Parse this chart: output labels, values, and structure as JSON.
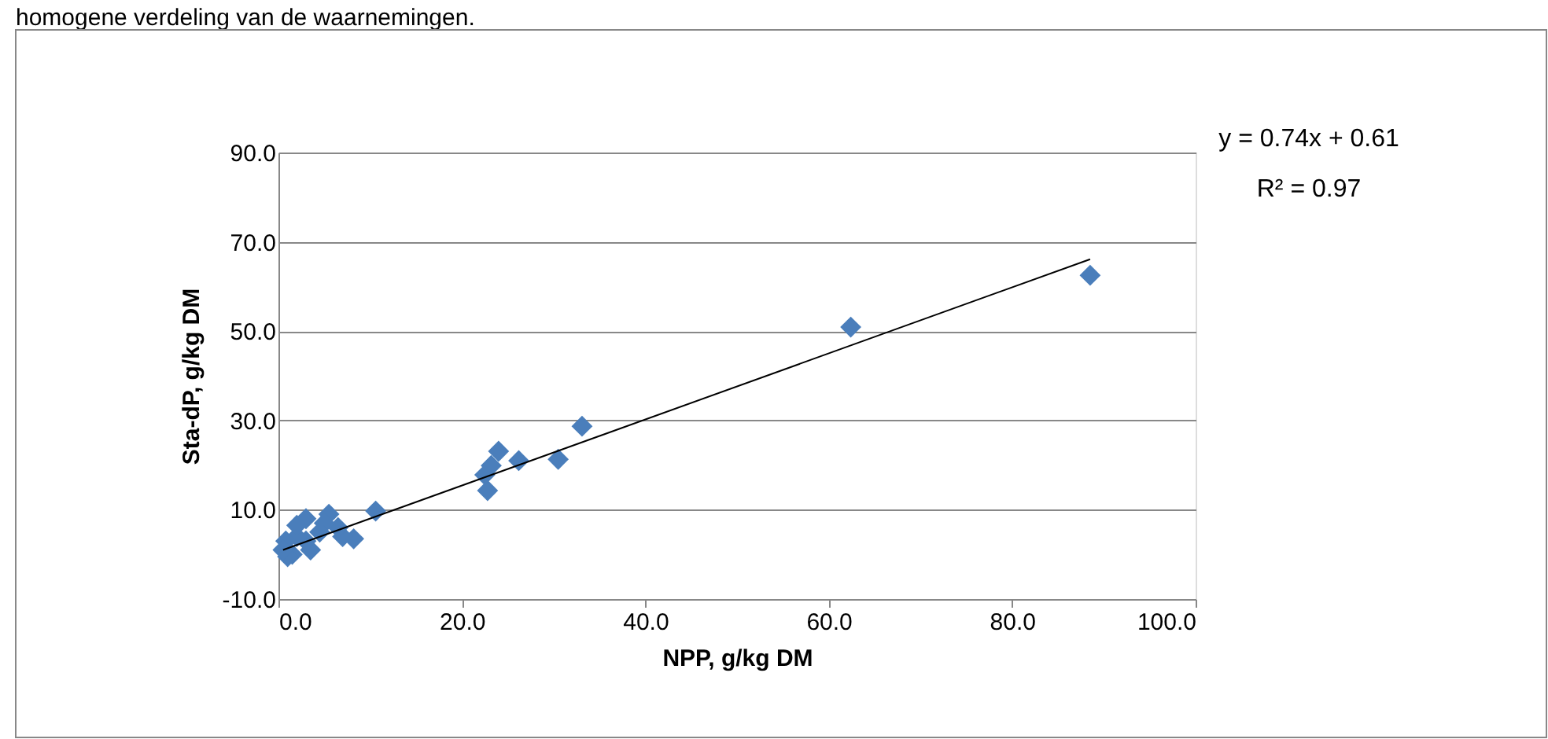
{
  "chart_data": {
    "type": "scatter",
    "xlabel": "NPP, g/kg DM",
    "ylabel": "Sta-dP, g/kg DM",
    "annotations": [
      "homogene verdeling van de waarnemingen.",
      "y = 0.74x + 0.61",
      "R² = 0.97"
    ],
    "series": [
      {
        "color": "#4a7ebb",
        "marker": "diamond",
        "x": [
          88.5,
          62.4,
          33.1,
          30.5,
          26.2,
          24.0,
          23.2,
          22.8,
          22.5,
          10.6,
          8.2,
          7.0,
          6.5,
          5.5,
          5.0,
          4.5,
          3.5,
          3.0,
          3.0,
          2.0,
          2.0,
          1.5,
          1.0,
          0.8,
          0.5
        ],
        "values": [
          62.5,
          50.9,
          28.7,
          21.3,
          21.0,
          23.1,
          19.9,
          14.3,
          17.8,
          9.7,
          3.5,
          4.0,
          6.0,
          9.0,
          7.0,
          5.0,
          1.0,
          3.0,
          8.0,
          4.0,
          6.5,
          0.0,
          -0.5,
          3.0,
          1.0
        ]
      },
      {
        "type": "line",
        "color": "#000000",
        "line_style": "solid",
        "x": [
          0.5,
          88.5
        ],
        "values": [
          1.0,
          66.1
        ]
      }
    ],
    "xlim": [
      0,
      100
    ],
    "xticks": [
      {
        "value": 0,
        "label": "0.0"
      },
      {
        "value": 20,
        "label": "20.0"
      },
      {
        "value": 40,
        "label": "40.0"
      },
      {
        "value": 60,
        "label": "60.0"
      },
      {
        "value": 80,
        "label": "80.0"
      },
      {
        "value": 100,
        "label": "100.0"
      }
    ],
    "ylim": [
      -10,
      90
    ],
    "yticks": [
      {
        "value": -10,
        "label": "-10.0"
      },
      {
        "value": 10,
        "label": "10.0"
      },
      {
        "value": 30,
        "label": "30.0"
      },
      {
        "value": 50,
        "label": "50.0"
      },
      {
        "value": 70,
        "label": "70.0"
      },
      {
        "value": 90,
        "label": "90.0"
      }
    ],
    "grid": "y"
  }
}
